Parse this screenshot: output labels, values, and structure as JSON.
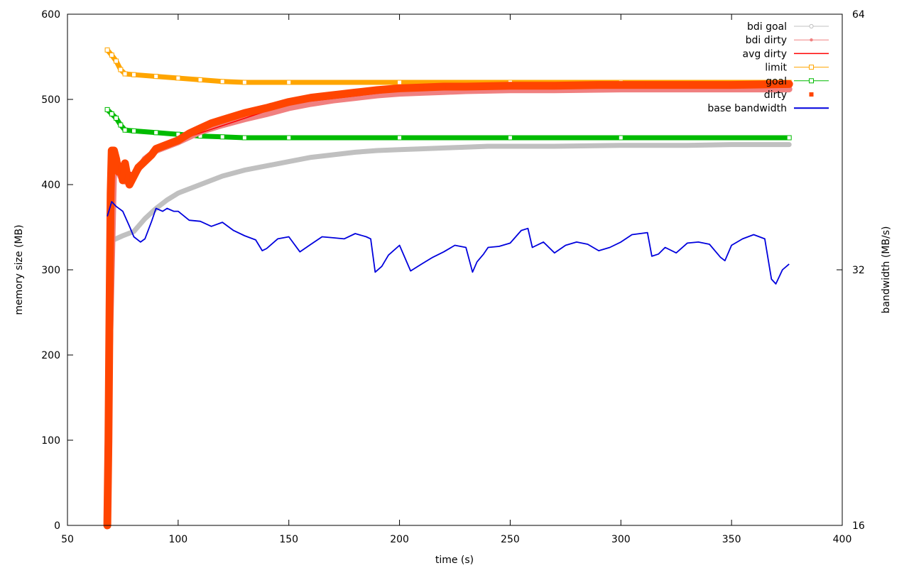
{
  "chart_data": {
    "type": "line",
    "title": "",
    "xlabel": "time (s)",
    "ylabel": "memory size (MB)",
    "y2label": "bandwidth (MB/s)",
    "xlim": [
      50,
      400
    ],
    "ylim": [
      0,
      600
    ],
    "y2lim": [
      16,
      64
    ],
    "y2scale": "log",
    "xticks": [
      50,
      100,
      150,
      200,
      250,
      300,
      350,
      400
    ],
    "yticks": [
      0,
      100,
      200,
      300,
      400,
      500,
      600
    ],
    "y2ticks": [
      16,
      32,
      64
    ],
    "legend_position": "top-right",
    "grid": false,
    "series": [
      {
        "name": "bdi goal",
        "color": "#c0c0c0",
        "marker": "circle",
        "axis": "y",
        "x": [
          69,
          75,
          80,
          85,
          90,
          95,
          100,
          110,
          120,
          130,
          140,
          150,
          160,
          170,
          180,
          190,
          200,
          210,
          220,
          230,
          240,
          250,
          270,
          300,
          330,
          350,
          376
        ],
        "y": [
          333,
          340,
          345,
          360,
          372,
          382,
          390,
          400,
          410,
          417,
          422,
          427,
          432,
          435,
          438,
          440,
          441,
          442,
          443,
          444,
          445,
          445,
          445,
          446,
          446,
          447,
          447
        ]
      },
      {
        "name": "bdi dirty",
        "color": "#f08080",
        "marker": "dot",
        "axis": "y",
        "x": [
          68,
          69,
          71,
          73,
          75,
          78,
          80,
          85,
          90,
          95,
          100,
          110,
          120,
          130,
          140,
          150,
          160,
          170,
          180,
          190,
          200,
          210,
          220,
          230,
          250,
          270,
          300,
          330,
          350,
          376
        ],
        "y": [
          5,
          200,
          425,
          415,
          405,
          402,
          410,
          430,
          440,
          445,
          450,
          462,
          470,
          477,
          483,
          490,
          495,
          499,
          502,
          505,
          507,
          508,
          509,
          510,
          511,
          511,
          512,
          512,
          512,
          512
        ]
      },
      {
        "name": "avg dirty",
        "color": "#ff0000",
        "marker": "none",
        "axis": "y",
        "x": [
          68,
          69,
          70,
          72,
          75,
          80,
          90,
          100,
          150,
          200,
          250,
          300,
          376
        ],
        "y": [
          0,
          300,
          440,
          435,
          420,
          412,
          440,
          452,
          495,
          510,
          514,
          515,
          516
        ]
      },
      {
        "name": "limit",
        "color": "#ffa500",
        "marker": "square",
        "axis": "y",
        "x": [
          68,
          70,
          72,
          74,
          76,
          80,
          90,
          100,
          110,
          120,
          130,
          150,
          200,
          250,
          300,
          376
        ],
        "y": [
          558,
          552,
          545,
          535,
          530,
          529,
          527,
          525,
          523,
          521,
          520,
          520,
          520,
          520,
          520,
          520
        ]
      },
      {
        "name": "goal",
        "color": "#00bb00",
        "marker": "square",
        "axis": "y",
        "x": [
          68,
          70,
          72,
          74,
          76,
          80,
          90,
          100,
          110,
          120,
          130,
          150,
          200,
          250,
          300,
          376
        ],
        "y": [
          488,
          483,
          478,
          470,
          464,
          463,
          461,
          459,
          457,
          456,
          455,
          455,
          455,
          455,
          455,
          455
        ]
      },
      {
        "name": "dirty",
        "color": "#ff4500",
        "marker": "filled-square",
        "axis": "y",
        "x": [
          68,
          68.5,
          69,
          69.5,
          70,
          71,
          72,
          73,
          74,
          75,
          76,
          77,
          78,
          79,
          80,
          82,
          84,
          86,
          88,
          90,
          93,
          96,
          100,
          105,
          110,
          115,
          120,
          130,
          140,
          150,
          160,
          170,
          180,
          190,
          200,
          210,
          220,
          230,
          250,
          270,
          290,
          310,
          330,
          350,
          376
        ],
        "y": [
          0,
          100,
          250,
          390,
          440,
          440,
          430,
          415,
          420,
          405,
          425,
          410,
          400,
          405,
          410,
          420,
          425,
          430,
          435,
          442,
          445,
          448,
          452,
          460,
          466,
          472,
          476,
          484,
          490,
          497,
          502,
          505,
          508,
          511,
          513,
          514,
          515,
          515,
          516,
          516,
          517,
          517,
          517,
          517,
          518
        ]
      },
      {
        "name": "base bandwidth",
        "color": "#0000dd",
        "marker": "none",
        "axis": "y2",
        "x": [
          68,
          70,
          72,
          75,
          78,
          80,
          83,
          85,
          88,
          90,
          93,
          95,
          98,
          100,
          105,
          110,
          115,
          120,
          125,
          130,
          135,
          138,
          140,
          145,
          150,
          155,
          160,
          165,
          170,
          175,
          180,
          185,
          187,
          189,
          192,
          195,
          200,
          205,
          210,
          215,
          220,
          225,
          230,
          233,
          235,
          238,
          240,
          245,
          250,
          255,
          258,
          260,
          265,
          270,
          275,
          280,
          285,
          290,
          295,
          300,
          305,
          312,
          314,
          317,
          320,
          325,
          330,
          335,
          340,
          345,
          347,
          350,
          355,
          360,
          365,
          368,
          370,
          373,
          376
        ],
        "y": [
          37.0,
          38.5,
          38.0,
          37.5,
          36.0,
          35.0,
          34.5,
          34.8,
          36.5,
          37.8,
          37.5,
          37.8,
          37.5,
          37.5,
          36.6,
          36.5,
          36.0,
          36.4,
          35.6,
          35.1,
          34.7,
          33.7,
          33.9,
          34.8,
          35.0,
          33.6,
          34.3,
          35.0,
          34.9,
          34.8,
          35.3,
          35.0,
          34.8,
          31.8,
          32.3,
          33.3,
          34.2,
          31.9,
          32.5,
          33.1,
          33.6,
          34.2,
          34.0,
          31.8,
          32.7,
          33.4,
          34.0,
          34.1,
          34.4,
          35.6,
          35.8,
          34.0,
          34.5,
          33.5,
          34.2,
          34.5,
          34.3,
          33.7,
          34.0,
          34.5,
          35.2,
          35.4,
          33.2,
          33.4,
          34.0,
          33.5,
          34.4,
          34.5,
          34.3,
          33.1,
          32.8,
          34.2,
          34.8,
          35.2,
          34.8,
          31.2,
          30.8,
          32.0,
          32.5
        ]
      }
    ]
  }
}
